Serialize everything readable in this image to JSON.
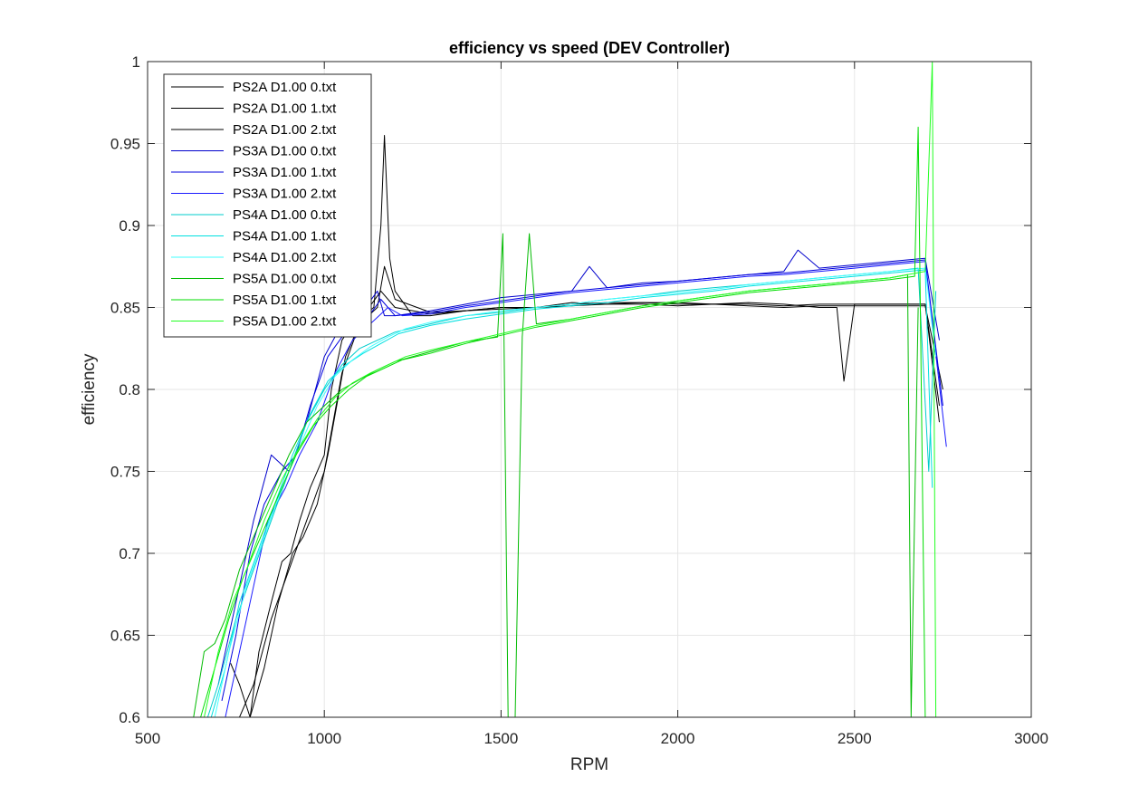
{
  "chart_data": {
    "type": "line",
    "title": "efficiency vs speed (DEV Controller)",
    "xlabel": "RPM",
    "ylabel": "efficiency",
    "xlim": [
      500,
      3000
    ],
    "ylim": [
      0.6,
      1.0
    ],
    "xticks": [
      "500",
      "1000",
      "1500",
      "2000",
      "2500",
      "3000"
    ],
    "yticks": [
      "0.6",
      "0.65",
      "0.7",
      "0.75",
      "0.8",
      "0.85",
      "0.9",
      "0.95",
      "1"
    ],
    "grid": true,
    "legend_position": "top-left",
    "series": [
      {
        "name": "PS2A D1.00 0.txt",
        "color": "#000000",
        "x": [
          735,
          760,
          790,
          815,
          850,
          880,
          905,
          930,
          960,
          1000,
          1020,
          1050,
          1080,
          1110,
          1140,
          1160,
          1170,
          1185,
          1200,
          1250,
          1300,
          1400,
          1500,
          1600,
          1700,
          1800,
          1900,
          2000,
          2100,
          2200,
          2300,
          2400,
          2450,
          2470,
          2500,
          2600,
          2700,
          2740
        ],
        "y": [
          0.633,
          0.62,
          0.6,
          0.64,
          0.67,
          0.695,
          0.7,
          0.72,
          0.74,
          0.76,
          0.8,
          0.83,
          0.84,
          0.845,
          0.85,
          0.9,
          0.955,
          0.88,
          0.86,
          0.845,
          0.845,
          0.848,
          0.85,
          0.85,
          0.852,
          0.853,
          0.853,
          0.853,
          0.852,
          0.853,
          0.852,
          0.85,
          0.85,
          0.805,
          0.852,
          0.852,
          0.852,
          0.78
        ]
      },
      {
        "name": "PS2A D1.00 1.txt",
        "color": "#000000",
        "x": [
          760,
          800,
          850,
          900,
          950,
          1000,
          1050,
          1100,
          1150,
          1170,
          1200,
          1300,
          1400,
          1500,
          1600,
          1700,
          1800,
          1900,
          2000,
          2100,
          2200,
          2300,
          2400,
          2500,
          2600,
          2700,
          2740
        ],
        "y": [
          0.6,
          0.62,
          0.66,
          0.69,
          0.72,
          0.75,
          0.81,
          0.84,
          0.85,
          0.875,
          0.855,
          0.847,
          0.848,
          0.85,
          0.85,
          0.853,
          0.852,
          0.853,
          0.852,
          0.852,
          0.852,
          0.851,
          0.852,
          0.852,
          0.852,
          0.852,
          0.79
        ]
      },
      {
        "name": "PS2A D1.00 2.txt",
        "color": "#000000",
        "x": [
          790,
          830,
          870,
          910,
          940,
          980,
          1010,
          1060,
          1110,
          1160,
          1200,
          1300,
          1400,
          1500,
          1600,
          1700,
          1800,
          1900,
          2000,
          2100,
          2200,
          2300,
          2400,
          2500,
          2600,
          2700,
          2750
        ],
        "y": [
          0.6,
          0.63,
          0.67,
          0.7,
          0.71,
          0.73,
          0.76,
          0.82,
          0.845,
          0.86,
          0.85,
          0.846,
          0.848,
          0.849,
          0.85,
          0.851,
          0.852,
          0.852,
          0.851,
          0.852,
          0.851,
          0.85,
          0.851,
          0.851,
          0.851,
          0.851,
          0.8
        ]
      },
      {
        "name": "PS3A D1.00 0.txt",
        "color": "#0000cc",
        "x": [
          700,
          740,
          770,
          800,
          850,
          900,
          950,
          1000,
          1050,
          1100,
          1150,
          1170,
          1200,
          1300,
          1400,
          1500,
          1600,
          1700,
          1750,
          1800,
          1900,
          2000,
          2100,
          2200,
          2300,
          2340,
          2400,
          2500,
          2600,
          2700,
          2740
        ],
        "y": [
          0.62,
          0.66,
          0.69,
          0.72,
          0.76,
          0.75,
          0.78,
          0.82,
          0.84,
          0.845,
          0.86,
          0.845,
          0.845,
          0.848,
          0.852,
          0.856,
          0.858,
          0.86,
          0.875,
          0.862,
          0.865,
          0.866,
          0.868,
          0.87,
          0.872,
          0.885,
          0.874,
          0.876,
          0.878,
          0.88,
          0.83
        ]
      },
      {
        "name": "PS3A D1.00 1.txt",
        "color": "#0000dd",
        "x": [
          710,
          750,
          790,
          830,
          880,
          920,
          960,
          1010,
          1060,
          1110,
          1160,
          1200,
          1300,
          1400,
          1500,
          1600,
          1700,
          1800,
          1900,
          2000,
          2100,
          2200,
          2300,
          2400,
          2500,
          2600,
          2700,
          2750
        ],
        "y": [
          0.61,
          0.65,
          0.7,
          0.73,
          0.75,
          0.76,
          0.79,
          0.82,
          0.835,
          0.84,
          0.855,
          0.845,
          0.847,
          0.851,
          0.854,
          0.857,
          0.86,
          0.862,
          0.864,
          0.866,
          0.868,
          0.87,
          0.871,
          0.873,
          0.875,
          0.877,
          0.879,
          0.79
        ]
      },
      {
        "name": "PS3A D1.00 2.txt",
        "color": "#1a1aff",
        "x": [
          720,
          760,
          800,
          840,
          890,
          930,
          980,
          1030,
          1080,
          1130,
          1180,
          1220,
          1300,
          1400,
          1500,
          1600,
          1700,
          1800,
          1900,
          2000,
          2100,
          2200,
          2300,
          2400,
          2500,
          2600,
          2700,
          2760
        ],
        "y": [
          0.6,
          0.64,
          0.68,
          0.72,
          0.74,
          0.76,
          0.78,
          0.81,
          0.83,
          0.84,
          0.85,
          0.845,
          0.846,
          0.85,
          0.853,
          0.856,
          0.859,
          0.861,
          0.863,
          0.865,
          0.867,
          0.869,
          0.87,
          0.872,
          0.874,
          0.876,
          0.878,
          0.765
        ]
      },
      {
        "name": "PS4A D1.00 0.txt",
        "color": "#00cccc",
        "x": [
          670,
          700,
          750,
          800,
          850,
          900,
          950,
          1000,
          1050,
          1100,
          1150,
          1200,
          1300,
          1400,
          1500,
          1600,
          1700,
          1800,
          1900,
          2000,
          2100,
          2200,
          2300,
          2400,
          2500,
          2600,
          2680,
          2710,
          2730
        ],
        "y": [
          0.6,
          0.62,
          0.66,
          0.69,
          0.72,
          0.75,
          0.78,
          0.8,
          0.815,
          0.825,
          0.83,
          0.835,
          0.84,
          0.845,
          0.847,
          0.85,
          0.852,
          0.855,
          0.857,
          0.86,
          0.862,
          0.864,
          0.866,
          0.868,
          0.87,
          0.872,
          0.874,
          0.75,
          0.86
        ]
      },
      {
        "name": "PS4A D1.00 1.txt",
        "color": "#00e0e0",
        "x": [
          680,
          720,
          760,
          810,
          860,
          910,
          960,
          1010,
          1060,
          1110,
          1160,
          1210,
          1300,
          1400,
          1500,
          1600,
          1700,
          1800,
          1900,
          2000,
          2100,
          2200,
          2300,
          2400,
          2500,
          2600,
          2700,
          2720
        ],
        "y": [
          0.6,
          0.63,
          0.67,
          0.7,
          0.73,
          0.76,
          0.785,
          0.805,
          0.815,
          0.822,
          0.828,
          0.834,
          0.839,
          0.843,
          0.846,
          0.849,
          0.851,
          0.853,
          0.856,
          0.858,
          0.86,
          0.863,
          0.865,
          0.867,
          0.869,
          0.871,
          0.873,
          0.74
        ]
      },
      {
        "name": "PS4A D1.00 2.txt",
        "color": "#40ffff",
        "x": [
          690,
          730,
          780,
          830,
          880,
          930,
          980,
          1030,
          1080,
          1130,
          1180,
          1230,
          1300,
          1400,
          1500,
          1600,
          1700,
          1800,
          1900,
          2000,
          2100,
          2200,
          2300,
          2400,
          2500,
          2600,
          2700,
          2730
        ],
        "y": [
          0.6,
          0.64,
          0.68,
          0.71,
          0.74,
          0.765,
          0.79,
          0.808,
          0.818,
          0.826,
          0.832,
          0.837,
          0.841,
          0.845,
          0.848,
          0.85,
          0.852,
          0.855,
          0.857,
          0.859,
          0.861,
          0.864,
          0.866,
          0.868,
          0.87,
          0.872,
          0.874,
          0.82
        ]
      },
      {
        "name": "PS5A D1.00 0.txt",
        "color": "#00bb00",
        "x": [
          630,
          660,
          690,
          720,
          760,
          800,
          850,
          900,
          950,
          1000,
          1050,
          1100,
          1150,
          1200,
          1300,
          1400,
          1490,
          1505,
          1520,
          1540,
          1560,
          1580,
          1600,
          1700,
          1800,
          1900,
          2000,
          2100,
          2200,
          2300,
          2400,
          2500,
          2600,
          2650,
          2660,
          2680
        ],
        "y": [
          0.6,
          0.64,
          0.645,
          0.66,
          0.69,
          0.71,
          0.735,
          0.76,
          0.78,
          0.79,
          0.8,
          0.806,
          0.812,
          0.817,
          0.823,
          0.829,
          0.832,
          0.895,
          0.6,
          0.6,
          0.832,
          0.895,
          0.84,
          0.843,
          0.847,
          0.851,
          0.854,
          0.857,
          0.86,
          0.862,
          0.864,
          0.866,
          0.868,
          0.87,
          0.6,
          0.85
        ]
      },
      {
        "name": "PS5A D1.00 1.txt",
        "color": "#00dd00",
        "x": [
          650,
          690,
          730,
          770,
          820,
          870,
          920,
          970,
          1020,
          1070,
          1120,
          1170,
          1220,
          1300,
          1400,
          1500,
          1600,
          1700,
          1800,
          1900,
          2000,
          2100,
          2200,
          2300,
          2400,
          2500,
          2600,
          2670,
          2680,
          2700
        ],
        "y": [
          0.6,
          0.63,
          0.66,
          0.685,
          0.71,
          0.735,
          0.76,
          0.778,
          0.79,
          0.8,
          0.808,
          0.813,
          0.818,
          0.822,
          0.828,
          0.833,
          0.838,
          0.842,
          0.846,
          0.85,
          0.853,
          0.856,
          0.859,
          0.861,
          0.863,
          0.865,
          0.867,
          0.869,
          0.96,
          0.6
        ]
      },
      {
        "name": "PS5A D1.00 2.txt",
        "color": "#22ff22",
        "x": [
          660,
          700,
          740,
          780,
          830,
          880,
          930,
          980,
          1030,
          1080,
          1130,
          1180,
          1230,
          1300,
          1400,
          1500,
          1600,
          1700,
          1800,
          1900,
          2000,
          2100,
          2200,
          2300,
          2400,
          2500,
          2600,
          2650,
          2700,
          2720,
          2730
        ],
        "y": [
          0.6,
          0.64,
          0.67,
          0.69,
          0.72,
          0.745,
          0.765,
          0.782,
          0.795,
          0.804,
          0.81,
          0.815,
          0.82,
          0.824,
          0.829,
          0.834,
          0.839,
          0.843,
          0.847,
          0.851,
          0.854,
          0.857,
          0.86,
          0.862,
          0.864,
          0.866,
          0.868,
          0.87,
          0.872,
          1.0,
          0.6
        ]
      }
    ]
  }
}
